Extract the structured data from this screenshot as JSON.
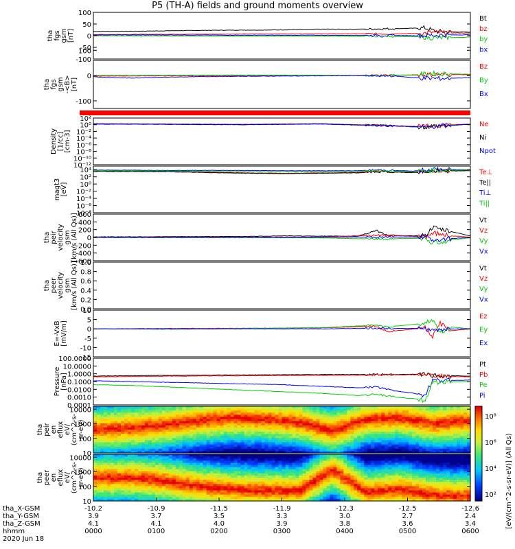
{
  "title": "P5 (TH-A) fields and ground moments overview",
  "colors": {
    "black": "#000000",
    "red": "#ff0000",
    "green": "#00cc00",
    "blue": "#0000ff",
    "gray": "#808080"
  },
  "chart_data": [
    {
      "id": "fgs",
      "type": "line",
      "ylabel": [
        "tha",
        "fgs",
        "gsm",
        "[nT]"
      ],
      "ylim": [
        -100,
        100
      ],
      "ticks": [
        "100",
        "50",
        "0",
        "-50",
        "-100"
      ],
      "legend": [
        {
          "label": "Bt",
          "color": "black"
        },
        {
          "label": "bz",
          "color": "red"
        },
        {
          "label": "by",
          "color": "green"
        },
        {
          "label": "bx",
          "color": "blue"
        }
      ],
      "series": [
        {
          "name": "Bt",
          "color": "black",
          "x": [
            0,
            0.1,
            0.2,
            0.3,
            0.4,
            0.45,
            0.5,
            0.55,
            0.6,
            0.7,
            0.8,
            0.85,
            0.88,
            0.91,
            0.95,
            1.0
          ],
          "y": [
            18,
            19,
            21,
            23,
            24,
            24,
            25,
            26,
            28,
            28,
            30,
            32,
            33,
            18,
            16,
            15
          ]
        },
        {
          "name": "bz",
          "color": "red",
          "x": [
            0,
            0.2,
            0.4,
            0.6,
            0.8,
            0.87,
            0.9,
            0.95,
            1.0
          ],
          "y": [
            5,
            6,
            7,
            8,
            8,
            10,
            14,
            12,
            11
          ]
        },
        {
          "name": "by",
          "color": "green",
          "x": [
            0,
            0.2,
            0.4,
            0.6,
            0.8,
            0.87,
            0.9,
            0.95,
            1.0
          ],
          "y": [
            0,
            -1,
            -2,
            -2,
            -3,
            -5,
            -10,
            -8,
            -6
          ]
        },
        {
          "name": "bx",
          "color": "blue",
          "x": [
            0,
            0.2,
            0.4,
            0.6,
            0.8,
            0.87,
            0.9,
            0.95,
            1.0
          ],
          "y": [
            3,
            3,
            2,
            2,
            1,
            0,
            2,
            3,
            4
          ]
        }
      ]
    },
    {
      "id": "fgs-lmn",
      "type": "line",
      "ylabel": [
        "tha",
        "fgs",
        "gsm",
        "-<B>",
        "[nT]"
      ],
      "ylim": [
        -130,
        60
      ],
      "ticks": [
        "100",
        "0",
        "-100"
      ],
      "tick_values": [
        100,
        0,
        -100
      ],
      "legend": [
        {
          "label": "Bz",
          "color": "red"
        },
        {
          "label": "By",
          "color": "green"
        },
        {
          "label": "Bx",
          "color": "blue"
        }
      ],
      "series": [
        {
          "name": "Bz",
          "color": "red",
          "x": [
            0,
            0.2,
            0.4,
            0.6,
            0.75,
            0.85,
            0.9,
            1.0
          ],
          "y": [
            -2,
            -1,
            0,
            0,
            1,
            2,
            5,
            3
          ]
        },
        {
          "name": "By",
          "color": "green",
          "x": [
            0,
            0.2,
            0.4,
            0.6,
            0.75,
            0.85,
            0.9,
            1.0
          ],
          "y": [
            0,
            1,
            2,
            1,
            0,
            3,
            8,
            5
          ]
        },
        {
          "name": "Bx",
          "color": "blue",
          "x": [
            0,
            0.05,
            0.1,
            0.2,
            0.3,
            0.4,
            0.5,
            0.6,
            0.7,
            0.8,
            0.85,
            0.9,
            0.95,
            1.0
          ],
          "y": [
            -5,
            -8,
            -10,
            -6,
            -4,
            -3,
            -2,
            -1,
            0,
            -2,
            -8,
            -12,
            -10,
            -9
          ]
        }
      ]
    },
    {
      "id": "density",
      "type": "line",
      "ylabel": [
        "Density",
        "[1/cc]",
        "[cm-3]"
      ],
      "ylim": [
        -12,
        2
      ],
      "ticks": [
        "10²",
        "10⁰",
        "10⁻²",
        "10⁻⁴",
        "10⁻⁶",
        "10⁻⁸",
        "10⁻¹⁰",
        "10⁻¹²"
      ],
      "tick_values": [
        2,
        0,
        -2,
        -4,
        -6,
        -8,
        -10,
        -12
      ],
      "legend": [
        {
          "label": "Ne",
          "color": "red"
        },
        {
          "label": "Ni",
          "color": "black"
        },
        {
          "label": "Npot",
          "color": "blue"
        }
      ],
      "series": [
        {
          "name": "Ne",
          "color": "red",
          "x": [
            0,
            0.2,
            0.4,
            0.6,
            0.7,
            0.8,
            0.88,
            0.9,
            1.0
          ],
          "y": [
            0.3,
            0.2,
            0.1,
            0.3,
            0.0,
            -0.3,
            -0.6,
            -0.3,
            0.2
          ]
        },
        {
          "name": "Ni",
          "color": "black",
          "x": [
            0,
            0.2,
            0.4,
            0.6,
            0.7,
            0.8,
            0.88,
            0.9,
            1.0
          ],
          "y": [
            0.2,
            0.1,
            0.0,
            0.2,
            -0.1,
            -0.4,
            -0.7,
            -0.4,
            0.1
          ]
        },
        {
          "name": "Npot",
          "color": "blue",
          "x": [
            0,
            0.2,
            0.4,
            0.6,
            0.7,
            0.8,
            0.88,
            0.9,
            1.0
          ],
          "y": [
            0.25,
            0.15,
            0.05,
            0.25,
            -0.05,
            -0.35,
            -0.8,
            -0.5,
            0.15
          ]
        }
      ]
    },
    {
      "id": "temperature",
      "type": "line",
      "ylabel": [
        "magt3",
        "[eV]"
      ],
      "ylim": [
        -8,
        5
      ],
      "ticks": [
        "10⁴",
        "10²",
        "10⁰",
        "10⁻²",
        "10⁻⁴",
        "10⁻⁶",
        "10⁻⁸"
      ],
      "tick_values": [
        4,
        2,
        0,
        -2,
        -4,
        -6,
        -8
      ],
      "legend": [
        {
          "label": "Te⊥",
          "color": "red"
        },
        {
          "label": "Te||",
          "color": "black"
        },
        {
          "label": "Ti⊥",
          "color": "blue"
        },
        {
          "label": "Ti||",
          "color": "green"
        }
      ],
      "series": [
        {
          "name": "Te⊥",
          "color": "red",
          "x": [
            0,
            0.2,
            0.35,
            0.5,
            0.7,
            0.75,
            0.85,
            0.9,
            1.0
          ],
          "y": [
            3.6,
            3.5,
            3.2,
            3.0,
            3.2,
            3.5,
            3.3,
            3.7,
            3.8
          ]
        },
        {
          "name": "Te||",
          "color": "black",
          "x": [
            0,
            0.2,
            0.35,
            0.5,
            0.7,
            0.75,
            0.85,
            0.9,
            1.0
          ],
          "y": [
            3.5,
            3.4,
            3.1,
            2.9,
            3.1,
            3.4,
            3.2,
            3.6,
            3.7
          ]
        },
        {
          "name": "Ti⊥",
          "color": "blue",
          "x": [
            0,
            0.2,
            0.35,
            0.5,
            0.7,
            0.75,
            0.85,
            0.9,
            1.0
          ],
          "y": [
            3.9,
            3.8,
            3.8,
            3.7,
            3.7,
            3.9,
            3.6,
            4.0,
            4.0
          ]
        },
        {
          "name": "Ti||",
          "color": "green",
          "x": [
            0,
            0.2,
            0.35,
            0.5,
            0.7,
            0.75,
            0.85,
            0.9,
            1.0
          ],
          "y": [
            3.7,
            3.6,
            3.5,
            3.4,
            3.5,
            3.7,
            3.4,
            3.8,
            3.9
          ]
        }
      ]
    },
    {
      "id": "peir-velocity",
      "type": "line",
      "ylabel": [
        "tha",
        "peir",
        "velocity",
        "gsm",
        "[km/s (All Qs)]"
      ],
      "ylim": [
        -600,
        600
      ],
      "ticks": [
        "600",
        "400",
        "200",
        "0",
        "-200",
        "-400",
        "-600"
      ],
      "legend": [
        {
          "label": "Vt",
          "color": "black"
        },
        {
          "label": "Vz",
          "color": "red"
        },
        {
          "label": "Vy",
          "color": "green"
        },
        {
          "label": "Vx",
          "color": "blue"
        }
      ],
      "series": [
        {
          "name": "Vt",
          "color": "black",
          "x": [
            0,
            0.2,
            0.4,
            0.5,
            0.7,
            0.75,
            0.78,
            0.82,
            0.88,
            0.9,
            0.95,
            1.0
          ],
          "y": [
            15,
            20,
            25,
            40,
            30,
            180,
            60,
            40,
            50,
            250,
            150,
            40
          ]
        },
        {
          "name": "Vz",
          "color": "red",
          "x": [
            0,
            0.2,
            0.4,
            0.6,
            0.75,
            0.88,
            0.9,
            0.95,
            1.0
          ],
          "y": [
            0,
            5,
            5,
            10,
            60,
            20,
            120,
            40,
            10
          ]
        },
        {
          "name": "Vy",
          "color": "green",
          "x": [
            0,
            0.2,
            0.4,
            0.6,
            0.75,
            0.88,
            0.9,
            0.95,
            1.0
          ],
          "y": [
            0,
            -5,
            -5,
            -10,
            -40,
            -20,
            -150,
            -60,
            -10
          ]
        },
        {
          "name": "Vx",
          "color": "blue",
          "x": [
            0,
            0.2,
            0.4,
            0.6,
            0.75,
            0.88,
            0.9,
            0.95,
            1.0
          ],
          "y": [
            0,
            0,
            0,
            5,
            10,
            10,
            -60,
            -30,
            0
          ]
        }
      ]
    },
    {
      "id": "peer-velocity",
      "type": "line",
      "ylabel": [
        "tha",
        "peer",
        "velocity",
        "gsm",
        "[km/s (All Qs)]"
      ],
      "ylim": [
        0,
        1
      ],
      "ticks": [
        "1.0",
        "0.8",
        "0.6",
        "0.4",
        "0.2",
        "0.0"
      ],
      "legend": [
        {
          "label": "Vt",
          "color": "black"
        },
        {
          "label": "Vz",
          "color": "red"
        },
        {
          "label": "Vy",
          "color": "green"
        },
        {
          "label": "Vx",
          "color": "blue"
        }
      ],
      "series": []
    },
    {
      "id": "efield",
      "type": "line",
      "ylabel": [
        "E=-VxB",
        "[mV/m]"
      ],
      "ylim": [
        -15,
        10
      ],
      "ticks": [
        "10",
        "5",
        "0",
        "-5",
        "-10",
        "-15"
      ],
      "legend": [
        {
          "label": "Ez",
          "color": "red"
        },
        {
          "label": "Ey",
          "color": "green"
        },
        {
          "label": "Ex",
          "color": "blue"
        }
      ],
      "series": [
        {
          "name": "Ez",
          "color": "red",
          "x": [
            0,
            0.2,
            0.4,
            0.6,
            0.75,
            0.78,
            0.88,
            0.9,
            0.92,
            0.95,
            1.0
          ],
          "y": [
            0,
            0.2,
            0.3,
            0.5,
            1.5,
            -1.5,
            0.5,
            -4,
            3,
            -1,
            0
          ]
        },
        {
          "name": "Ey",
          "color": "green",
          "x": [
            0,
            0.2,
            0.4,
            0.6,
            0.75,
            0.78,
            0.88,
            0.9,
            0.92,
            0.95,
            1.0
          ],
          "y": [
            0,
            -0.2,
            0.2,
            0.6,
            2,
            1,
            3,
            5,
            -2,
            1,
            0
          ]
        },
        {
          "name": "Ex",
          "color": "blue",
          "x": [
            0,
            0.2,
            0.4,
            0.6,
            0.75,
            0.88,
            0.9,
            0.95,
            1.0
          ],
          "y": [
            0,
            0,
            0,
            0,
            0.3,
            0.2,
            -1,
            0,
            0
          ]
        }
      ]
    },
    {
      "id": "pressure",
      "type": "line",
      "ylabel": [
        "Pressure",
        "[nPa]"
      ],
      "ylim": [
        -4,
        2
      ],
      "ticks": [
        "100.0000",
        "10.0000",
        "1.0000",
        "0.1000",
        "0.0100",
        "0.0010",
        "0.0001"
      ],
      "tick_values": [
        2,
        1,
        0,
        -1,
        -2,
        -3,
        -4
      ],
      "legend": [
        {
          "label": "Pt",
          "color": "black"
        },
        {
          "label": "Pb",
          "color": "red"
        },
        {
          "label": "Pe",
          "color": "green"
        },
        {
          "label": "Pi",
          "color": "blue"
        }
      ],
      "series": [
        {
          "name": "Pt",
          "color": "black",
          "x": [
            0,
            0.2,
            0.4,
            0.6,
            0.75,
            0.8,
            0.88,
            0.9,
            1.0
          ],
          "y": [
            -0.3,
            -0.2,
            -0.15,
            -0.1,
            -0.1,
            -0.1,
            -0.05,
            -0.2,
            -0.3
          ]
        },
        {
          "name": "Pb",
          "color": "red",
          "x": [
            0,
            0.2,
            0.4,
            0.6,
            0.8,
            0.88,
            0.9,
            1.0
          ],
          "y": [
            -0.4,
            -0.3,
            -0.25,
            -0.2,
            -0.15,
            -0.1,
            -0.3,
            -0.4
          ]
        },
        {
          "name": "Pi",
          "color": "blue",
          "x": [
            0,
            0.1,
            0.2,
            0.3,
            0.4,
            0.5,
            0.6,
            0.7,
            0.75,
            0.8,
            0.85,
            0.88,
            0.9,
            1.0
          ],
          "y": [
            -0.9,
            -1.0,
            -1.1,
            -1.2,
            -1.3,
            -1.4,
            -1.6,
            -1.8,
            -1.7,
            -2.2,
            -2.5,
            -2.8,
            -0.9,
            -0.8
          ]
        },
        {
          "name": "Pe",
          "color": "green",
          "x": [
            0,
            0.1,
            0.2,
            0.3,
            0.4,
            0.5,
            0.6,
            0.7,
            0.75,
            0.8,
            0.85,
            0.88,
            0.9,
            1.0
          ],
          "y": [
            -1.4,
            -1.5,
            -1.7,
            -1.9,
            -2.1,
            -2.3,
            -2.5,
            -2.8,
            -2.6,
            -3.0,
            -3.2,
            -3.4,
            -1.1,
            -1.0
          ]
        }
      ]
    },
    {
      "id": "peir-eflux",
      "type": "heatmap",
      "ylabel": [
        "tha",
        "peir",
        "en",
        "eflux",
        "eV/",
        "(cm^2-s-",
        "sr-eV)"
      ],
      "ylim": [
        1,
        4.2
      ],
      "ticks": [
        "10000",
        "1000",
        "100",
        "10"
      ],
      "tick_values": [
        4,
        3,
        2,
        1
      ],
      "band_center": [
        2.6,
        2.7,
        2.9,
        3.2,
        3.4,
        3.3,
        3.1,
        2.5,
        3.3,
        3.4,
        3.0,
        3.2
      ]
    },
    {
      "id": "peer-eflux",
      "type": "heatmap",
      "ylabel": [
        "tha",
        "peer",
        "en",
        "eflux",
        "eV/",
        "(cm^2-s-",
        "sr-eV)"
      ],
      "ylim": [
        1,
        4.2
      ],
      "ticks": [
        "10000",
        "1000",
        "100",
        "10"
      ],
      "tick_values": [
        4,
        3,
        2,
        1
      ],
      "band_center": [
        2.6,
        2.6,
        2.4,
        2.0,
        1.8,
        1.7,
        1.7,
        3.1,
        1.6,
        1.8,
        1.4,
        1.3
      ]
    }
  ],
  "colorbar": {
    "label": "[eV/(cm^2-s-sr-eV)] (All Qs)",
    "ticks": [
      "10⁸",
      "10⁶",
      "10⁴",
      "10²"
    ]
  },
  "xaxis": {
    "rows": [
      {
        "label": "tha_X-GSM",
        "values": [
          "-10.2",
          "-10.9",
          "-11.5",
          "-11.9",
          "-12.3",
          "-12.5",
          "-12.6"
        ]
      },
      {
        "label": "tha_Y-GSM",
        "values": [
          "3.9",
          "3.7",
          "3.5",
          "3.3",
          "3.0",
          "2.7",
          "2.4"
        ]
      },
      {
        "label": "tha_Z-GSM",
        "values": [
          "4.1",
          "4.1",
          "4.0",
          "3.9",
          "3.8",
          "3.6",
          "3.4"
        ]
      },
      {
        "label": "hhmm",
        "values": [
          "0000",
          "0100",
          "0200",
          "0300",
          "0400",
          "0500",
          "0600"
        ]
      }
    ],
    "date": "2020 Jun 18"
  }
}
